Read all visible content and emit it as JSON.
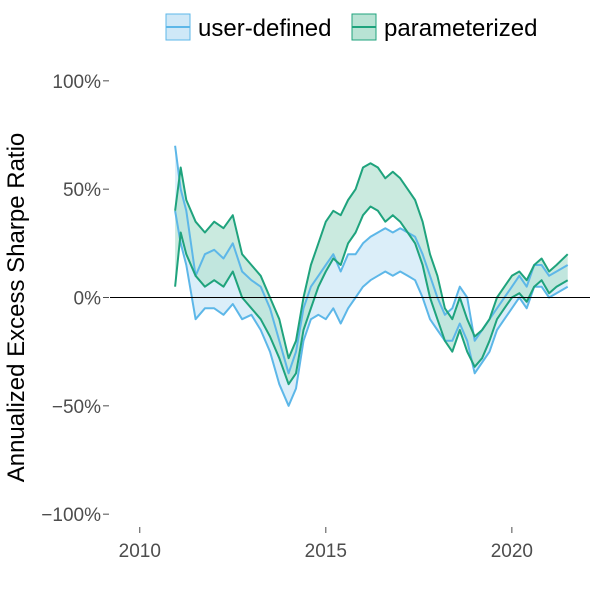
{
  "chart_data": {
    "type": "line",
    "title": "",
    "xlabel": "",
    "ylabel": "Annualized Excess Sharpe Ratio",
    "xlim": [
      2009.2,
      2022.1
    ],
    "ylim": [
      -105,
      105
    ],
    "x_ticks": [
      2010,
      2015,
      2020
    ],
    "x_tick_labels": [
      "2010",
      "2015",
      "2020"
    ],
    "y_ticks": [
      -100,
      -50,
      0,
      50,
      100
    ],
    "y_tick_labels": [
      "−100%",
      "−50%",
      "0%",
      "50%",
      "100%"
    ],
    "reference_line": 0,
    "grid": false,
    "legend_position": "top",
    "series": [
      {
        "name": "user-defined",
        "color": "#5db7e8",
        "fill": "#cfe8f7",
        "x": [
          2010.95,
          2011.1,
          2011.25,
          2011.5,
          2011.75,
          2012.0,
          2012.25,
          2012.5,
          2012.75,
          2013.0,
          2013.25,
          2013.5,
          2013.75,
          2014.0,
          2014.2,
          2014.4,
          2014.6,
          2014.8,
          2015.0,
          2015.2,
          2015.4,
          2015.6,
          2015.8,
          2016.0,
          2016.2,
          2016.4,
          2016.6,
          2016.8,
          2017.0,
          2017.2,
          2017.4,
          2017.6,
          2017.8,
          2018.0,
          2018.2,
          2018.4,
          2018.6,
          2018.8,
          2019.0,
          2019.2,
          2019.4,
          2019.6,
          2019.8,
          2020.0,
          2020.2,
          2020.4,
          2020.6,
          2020.8,
          2021.0,
          2021.2,
          2021.5
        ],
        "upper": [
          70,
          50,
          40,
          10,
          20,
          22,
          18,
          25,
          12,
          8,
          5,
          -5,
          -20,
          -35,
          -25,
          -5,
          5,
          10,
          15,
          20,
          12,
          20,
          20,
          25,
          28,
          30,
          32,
          30,
          32,
          30,
          28,
          20,
          10,
          0,
          -8,
          -5,
          5,
          0,
          -20,
          -15,
          -10,
          -5,
          0,
          5,
          10,
          5,
          15,
          15,
          10,
          12,
          15
        ],
        "lower": [
          40,
          25,
          15,
          -10,
          -5,
          -5,
          -8,
          -3,
          -10,
          -8,
          -15,
          -25,
          -40,
          -50,
          -42,
          -20,
          -10,
          -8,
          -10,
          -5,
          -12,
          -5,
          0,
          5,
          8,
          10,
          12,
          10,
          12,
          10,
          8,
          0,
          -10,
          -15,
          -20,
          -20,
          -12,
          -20,
          -35,
          -30,
          -25,
          -15,
          -10,
          -5,
          0,
          -5,
          5,
          5,
          0,
          2,
          5
        ]
      },
      {
        "name": "parameterized",
        "color": "#1fa37d",
        "fill": "#b8e3d4",
        "x": [
          2010.95,
          2011.1,
          2011.25,
          2011.5,
          2011.75,
          2012.0,
          2012.25,
          2012.5,
          2012.75,
          2013.0,
          2013.25,
          2013.5,
          2013.75,
          2014.0,
          2014.2,
          2014.4,
          2014.6,
          2014.8,
          2015.0,
          2015.2,
          2015.4,
          2015.6,
          2015.8,
          2016.0,
          2016.2,
          2016.4,
          2016.6,
          2016.8,
          2017.0,
          2017.2,
          2017.4,
          2017.6,
          2017.8,
          2018.0,
          2018.2,
          2018.4,
          2018.6,
          2018.8,
          2019.0,
          2019.2,
          2019.4,
          2019.6,
          2019.8,
          2020.0,
          2020.2,
          2020.4,
          2020.6,
          2020.8,
          2021.0,
          2021.2,
          2021.5
        ],
        "upper": [
          40,
          60,
          45,
          35,
          30,
          35,
          32,
          38,
          20,
          15,
          10,
          0,
          -10,
          -28,
          -20,
          0,
          15,
          25,
          35,
          40,
          38,
          45,
          50,
          60,
          62,
          60,
          55,
          58,
          55,
          50,
          45,
          35,
          20,
          10,
          -5,
          -10,
          0,
          -10,
          -18,
          -15,
          -10,
          0,
          5,
          10,
          12,
          8,
          15,
          18,
          12,
          15,
          20
        ],
        "lower": [
          5,
          30,
          20,
          10,
          5,
          8,
          5,
          12,
          0,
          -5,
          -10,
          -18,
          -28,
          -40,
          -35,
          -15,
          -5,
          5,
          12,
          18,
          15,
          25,
          30,
          38,
          42,
          40,
          35,
          38,
          35,
          30,
          25,
          15,
          0,
          -10,
          -20,
          -25,
          -15,
          -25,
          -32,
          -28,
          -20,
          -10,
          -5,
          0,
          2,
          -2,
          5,
          8,
          2,
          5,
          8
        ]
      }
    ]
  }
}
